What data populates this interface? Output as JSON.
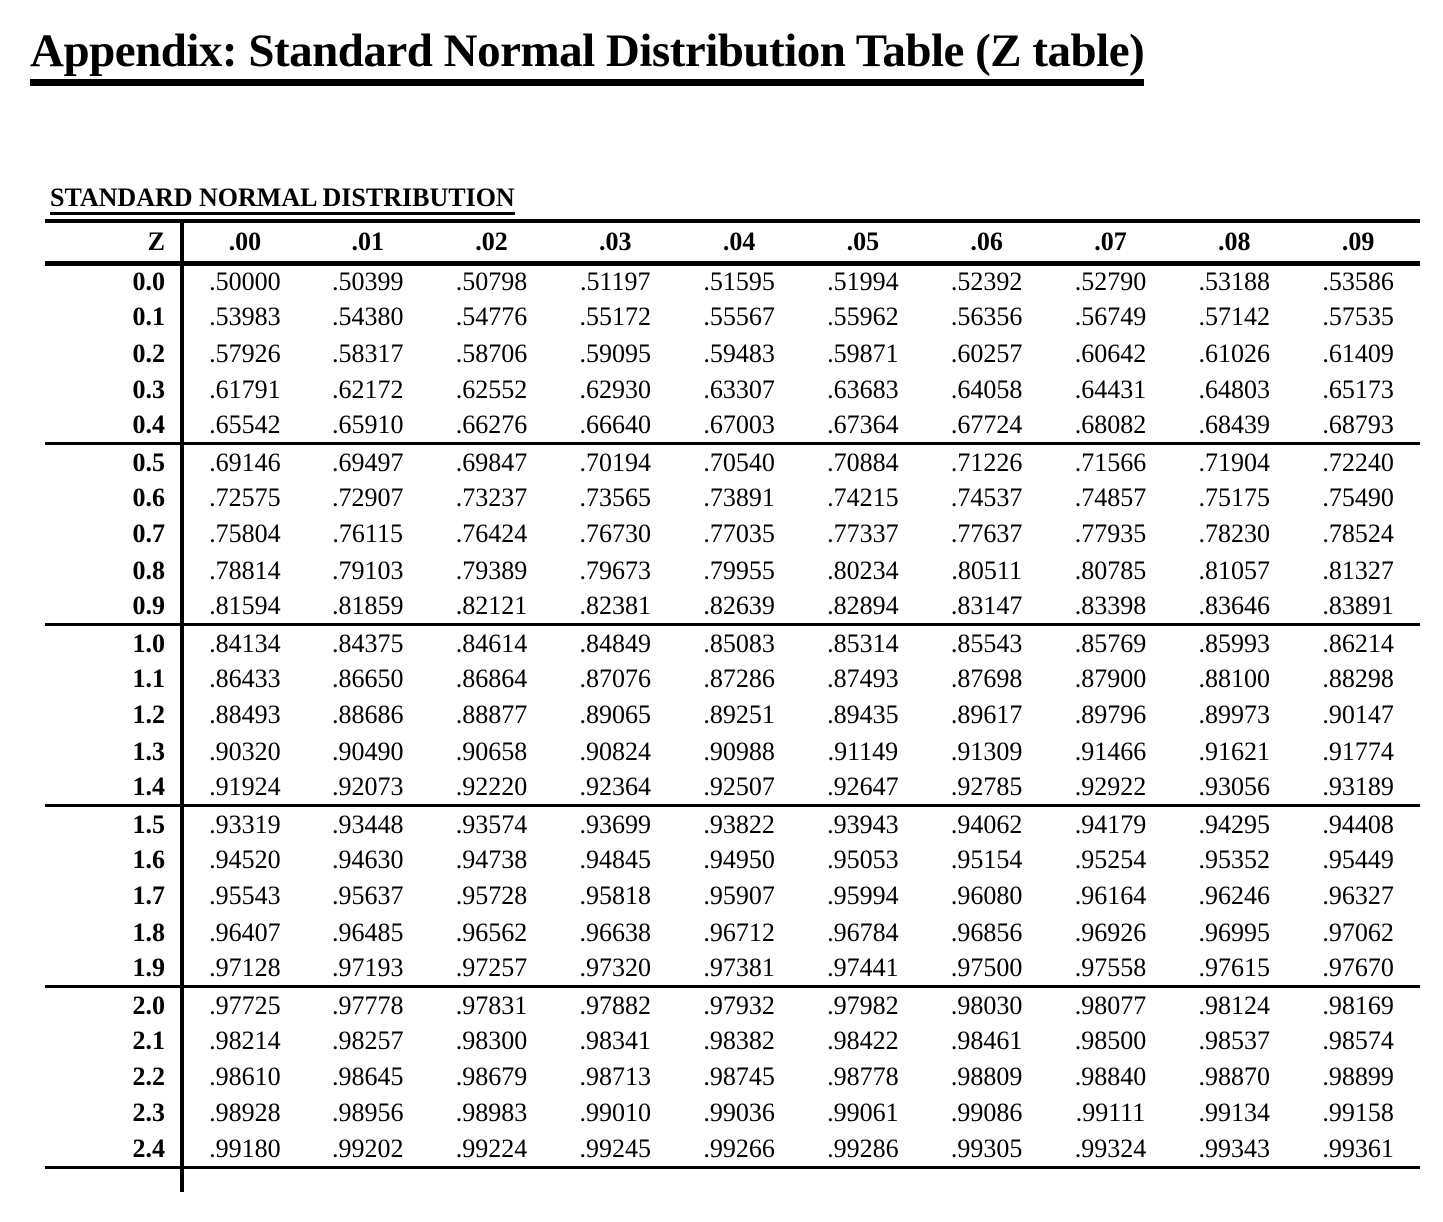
{
  "page": {
    "title": "Appendix: Standard Normal Distribution Table (Z table)"
  },
  "table": {
    "heading": "STANDARD NORMAL DISTRIBUTION",
    "corner_label": "Z",
    "column_headers": [
      ".00",
      ".01",
      ".02",
      ".03",
      ".04",
      ".05",
      ".06",
      ".07",
      ".08",
      ".09"
    ],
    "group_size": 5,
    "rows": [
      {
        "z": "0.0",
        "values": [
          ".50000",
          ".50399",
          ".50798",
          ".51197",
          ".51595",
          ".51994",
          ".52392",
          ".52790",
          ".53188",
          ".53586"
        ]
      },
      {
        "z": "0.1",
        "values": [
          ".53983",
          ".54380",
          ".54776",
          ".55172",
          ".55567",
          ".55962",
          ".56356",
          ".56749",
          ".57142",
          ".57535"
        ]
      },
      {
        "z": "0.2",
        "values": [
          ".57926",
          ".58317",
          ".58706",
          ".59095",
          ".59483",
          ".59871",
          ".60257",
          ".60642",
          ".61026",
          ".61409"
        ]
      },
      {
        "z": "0.3",
        "values": [
          ".61791",
          ".62172",
          ".62552",
          ".62930",
          ".63307",
          ".63683",
          ".64058",
          ".64431",
          ".64803",
          ".65173"
        ]
      },
      {
        "z": "0.4",
        "values": [
          ".65542",
          ".65910",
          ".66276",
          ".66640",
          ".67003",
          ".67364",
          ".67724",
          ".68082",
          ".68439",
          ".68793"
        ]
      },
      {
        "z": "0.5",
        "values": [
          ".69146",
          ".69497",
          ".69847",
          ".70194",
          ".70540",
          ".70884",
          ".71226",
          ".71566",
          ".71904",
          ".72240"
        ]
      },
      {
        "z": "0.6",
        "values": [
          ".72575",
          ".72907",
          ".73237",
          ".73565",
          ".73891",
          ".74215",
          ".74537",
          ".74857",
          ".75175",
          ".75490"
        ]
      },
      {
        "z": "0.7",
        "values": [
          ".75804",
          ".76115",
          ".76424",
          ".76730",
          ".77035",
          ".77337",
          ".77637",
          ".77935",
          ".78230",
          ".78524"
        ]
      },
      {
        "z": "0.8",
        "values": [
          ".78814",
          ".79103",
          ".79389",
          ".79673",
          ".79955",
          ".80234",
          ".80511",
          ".80785",
          ".81057",
          ".81327"
        ]
      },
      {
        "z": "0.9",
        "values": [
          ".81594",
          ".81859",
          ".82121",
          ".82381",
          ".82639",
          ".82894",
          ".83147",
          ".83398",
          ".83646",
          ".83891"
        ]
      },
      {
        "z": "1.0",
        "values": [
          ".84134",
          ".84375",
          ".84614",
          ".84849",
          ".85083",
          ".85314",
          ".85543",
          ".85769",
          ".85993",
          ".86214"
        ]
      },
      {
        "z": "1.1",
        "values": [
          ".86433",
          ".86650",
          ".86864",
          ".87076",
          ".87286",
          ".87493",
          ".87698",
          ".87900",
          ".88100",
          ".88298"
        ]
      },
      {
        "z": "1.2",
        "values": [
          ".88493",
          ".88686",
          ".88877",
          ".89065",
          ".89251",
          ".89435",
          ".89617",
          ".89796",
          ".89973",
          ".90147"
        ]
      },
      {
        "z": "1.3",
        "values": [
          ".90320",
          ".90490",
          ".90658",
          ".90824",
          ".90988",
          ".91149",
          ".91309",
          ".91466",
          ".91621",
          ".91774"
        ]
      },
      {
        "z": "1.4",
        "values": [
          ".91924",
          ".92073",
          ".92220",
          ".92364",
          ".92507",
          ".92647",
          ".92785",
          ".92922",
          ".93056",
          ".93189"
        ]
      },
      {
        "z": "1.5",
        "values": [
          ".93319",
          ".93448",
          ".93574",
          ".93699",
          ".93822",
          ".93943",
          ".94062",
          ".94179",
          ".94295",
          ".94408"
        ]
      },
      {
        "z": "1.6",
        "values": [
          ".94520",
          ".94630",
          ".94738",
          ".94845",
          ".94950",
          ".95053",
          ".95154",
          ".95254",
          ".95352",
          ".95449"
        ]
      },
      {
        "z": "1.7",
        "values": [
          ".95543",
          ".95637",
          ".95728",
          ".95818",
          ".95907",
          ".95994",
          ".96080",
          ".96164",
          ".96246",
          ".96327"
        ]
      },
      {
        "z": "1.8",
        "values": [
          ".96407",
          ".96485",
          ".96562",
          ".96638",
          ".96712",
          ".96784",
          ".96856",
          ".96926",
          ".96995",
          ".97062"
        ]
      },
      {
        "z": "1.9",
        "values": [
          ".97128",
          ".97193",
          ".97257",
          ".97320",
          ".97381",
          ".97441",
          ".97500",
          ".97558",
          ".97615",
          ".97670"
        ]
      },
      {
        "z": "2.0",
        "values": [
          ".97725",
          ".97778",
          ".97831",
          ".97882",
          ".97932",
          ".97982",
          ".98030",
          ".98077",
          ".98124",
          ".98169"
        ]
      },
      {
        "z": "2.1",
        "values": [
          ".98214",
          ".98257",
          ".98300",
          ".98341",
          ".98382",
          ".98422",
          ".98461",
          ".98500",
          ".98537",
          ".98574"
        ]
      },
      {
        "z": "2.2",
        "values": [
          ".98610",
          ".98645",
          ".98679",
          ".98713",
          ".98745",
          ".98778",
          ".98809",
          ".98840",
          ".98870",
          ".98899"
        ]
      },
      {
        "z": "2.3",
        "values": [
          ".98928",
          ".98956",
          ".98983",
          ".99010",
          ".99036",
          ".99061",
          ".99086",
          ".99111",
          ".99134",
          ".99158"
        ]
      },
      {
        "z": "2.4",
        "values": [
          ".99180",
          ".99202",
          ".99224",
          ".99245",
          ".99266",
          ".99286",
          ".99305",
          ".99324",
          ".99343",
          ".99361"
        ]
      }
    ]
  }
}
